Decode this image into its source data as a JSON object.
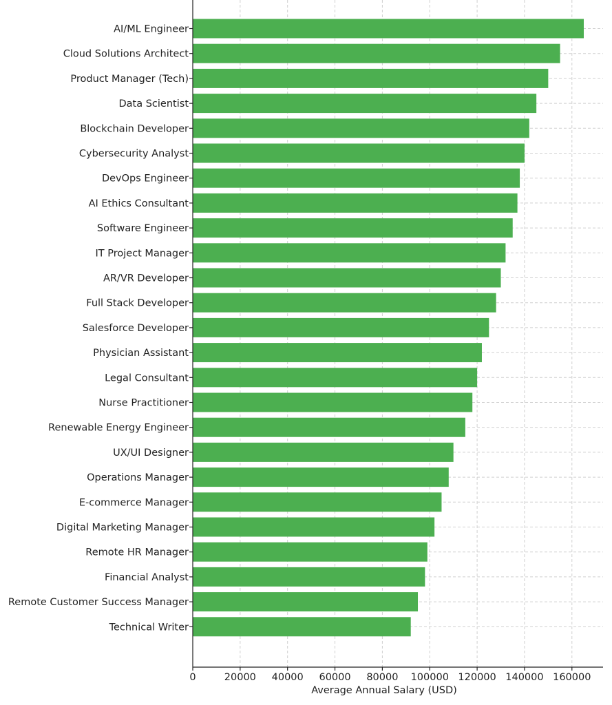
{
  "chart_data": {
    "type": "bar",
    "orientation": "horizontal",
    "categories": [
      "AI/ML Engineer",
      "Cloud Solutions Architect",
      "Product Manager (Tech)",
      "Data Scientist",
      "Blockchain Developer",
      "Cybersecurity Analyst",
      "DevOps Engineer",
      "AI Ethics Consultant",
      "Software Engineer",
      "IT Project Manager",
      "AR/VR Developer",
      "Full Stack Developer",
      "Salesforce Developer",
      "Physician Assistant",
      "Legal Consultant",
      "Nurse Practitioner",
      "Renewable Energy Engineer",
      "UX/UI Designer",
      "Operations Manager",
      "E-commerce Manager",
      "Digital Marketing Manager",
      "Remote HR Manager",
      "Financial Analyst",
      "Remote Customer Success Manager",
      "Technical Writer"
    ],
    "values": [
      165000,
      155000,
      150000,
      145000,
      142000,
      140000,
      138000,
      137000,
      135000,
      132000,
      130000,
      128000,
      125000,
      122000,
      120000,
      118000,
      115000,
      110000,
      108000,
      105000,
      102000,
      99000,
      98000,
      95000,
      92000
    ],
    "xlabel": "Average Annual Salary (USD)",
    "ylabel": "",
    "title": "",
    "xlim": [
      0,
      172000
    ],
    "xticks": [
      "0",
      "20000",
      "40000",
      "60000",
      "80000",
      "100000",
      "120000",
      "140000",
      "160000"
    ],
    "grid": true,
    "bar_color": "#4caf50"
  }
}
